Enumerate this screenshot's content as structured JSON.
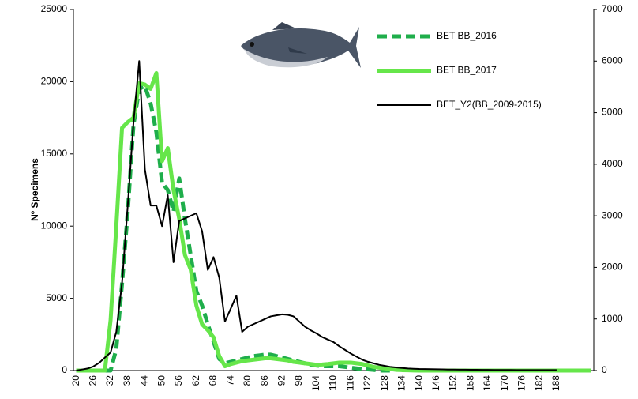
{
  "chart_data": {
    "type": "line",
    "y_label": "Nº Specimens",
    "categories": [
      20,
      null,
      null,
      26,
      null,
      null,
      32,
      null,
      null,
      38,
      null,
      null,
      44,
      null,
      null,
      50,
      null,
      null,
      56,
      null,
      null,
      62,
      null,
      null,
      68,
      null,
      null,
      74,
      null,
      null,
      80,
      null,
      null,
      86,
      null,
      null,
      92,
      null,
      null,
      98,
      null,
      null,
      104,
      null,
      null,
      110,
      null,
      null,
      116,
      null,
      null,
      122,
      null,
      null,
      128,
      null,
      null,
      134,
      null,
      null,
      140,
      null,
      null,
      146,
      null,
      null,
      152,
      null,
      null,
      158,
      null,
      null,
      164,
      null,
      null,
      170,
      null,
      null,
      176,
      null,
      null,
      182,
      null,
      null,
      188,
      null,
      null,
      null,
      null,
      null,
      null
    ],
    "ylim": [
      0,
      25000
    ],
    "yticks": [
      0,
      5000,
      10000,
      15000,
      20000,
      25000
    ],
    "y2lim": [
      0,
      7000
    ],
    "y2ticks": [
      0,
      1000,
      2000,
      3000,
      4000,
      5000,
      6000,
      7000
    ],
    "series": [
      {
        "name": "BET BB_2016",
        "color": "#1fae4b",
        "line_style": "dashed",
        "width": 5,
        "values": [
          0,
          0,
          0,
          0,
          0,
          0,
          0,
          1500,
          6000,
          11000,
          17000,
          19500,
          19700,
          18500,
          16500,
          13000,
          12500,
          11000,
          13300,
          10500,
          8000,
          5500,
          4500,
          3200,
          2000,
          800,
          500,
          600,
          700,
          800,
          900,
          1000,
          1050,
          1100,
          1100,
          1000,
          900,
          800,
          700,
          600,
          500,
          400,
          350,
          300,
          300,
          300,
          300,
          250,
          200,
          150,
          100,
          80,
          50,
          0,
          0,
          0,
          null,
          null,
          null,
          null,
          null,
          null,
          null,
          null,
          null,
          null,
          null,
          null,
          null,
          null,
          null,
          null,
          null,
          null,
          null,
          null,
          null,
          null,
          null,
          null,
          null,
          null,
          null,
          null,
          null,
          null,
          null,
          null,
          null,
          null,
          null
        ]
      },
      {
        "name": "BET BB_2017",
        "color": "#66e64a",
        "line_style": "solid",
        "width": 5,
        "values": [
          0,
          0,
          0,
          0,
          0,
          0,
          3500,
          10000,
          16800,
          17200,
          17500,
          19900,
          19800,
          19500,
          20600,
          14500,
          15400,
          12500,
          10500,
          8000,
          7000,
          4500,
          3200,
          2800,
          2300,
          1000,
          300,
          450,
          550,
          650,
          700,
          750,
          800,
          850,
          850,
          800,
          750,
          700,
          600,
          550,
          500,
          450,
          400,
          420,
          450,
          500,
          550,
          550,
          550,
          500,
          450,
          350,
          250,
          200,
          150,
          100,
          50,
          30,
          20,
          10,
          0,
          0,
          0,
          0,
          0,
          0,
          0,
          0,
          0,
          0,
          0,
          0,
          0,
          0,
          0,
          0,
          0,
          0,
          0,
          0,
          0,
          0,
          0,
          0,
          0,
          0,
          0,
          0,
          0,
          0,
          0
        ]
      },
      {
        "name": "BET_Y2(BB_2009-2015)",
        "color": "#000000",
        "line_style": "solid",
        "width": 2,
        "axis": "y2",
        "values": [
          0,
          20,
          40,
          80,
          150,
          250,
          350,
          750,
          1700,
          3200,
          4800,
          6000,
          3900,
          3200,
          3200,
          2800,
          3400,
          2100,
          2900,
          2950,
          3000,
          3050,
          2700,
          1950,
          2200,
          1800,
          950,
          1200,
          1450,
          750,
          850,
          900,
          950,
          1000,
          1050,
          1070,
          1090,
          1080,
          1050,
          950,
          850,
          780,
          720,
          650,
          600,
          550,
          470,
          400,
          330,
          270,
          210,
          170,
          140,
          110,
          90,
          70,
          60,
          50,
          40,
          35,
          30,
          28,
          26,
          24,
          22,
          20,
          19,
          18,
          17,
          16,
          15,
          14,
          13,
          12,
          12,
          11,
          11,
          10,
          10,
          10,
          10,
          10,
          10,
          10,
          10,
          null,
          null,
          null,
          null,
          null,
          null
        ]
      }
    ]
  }
}
